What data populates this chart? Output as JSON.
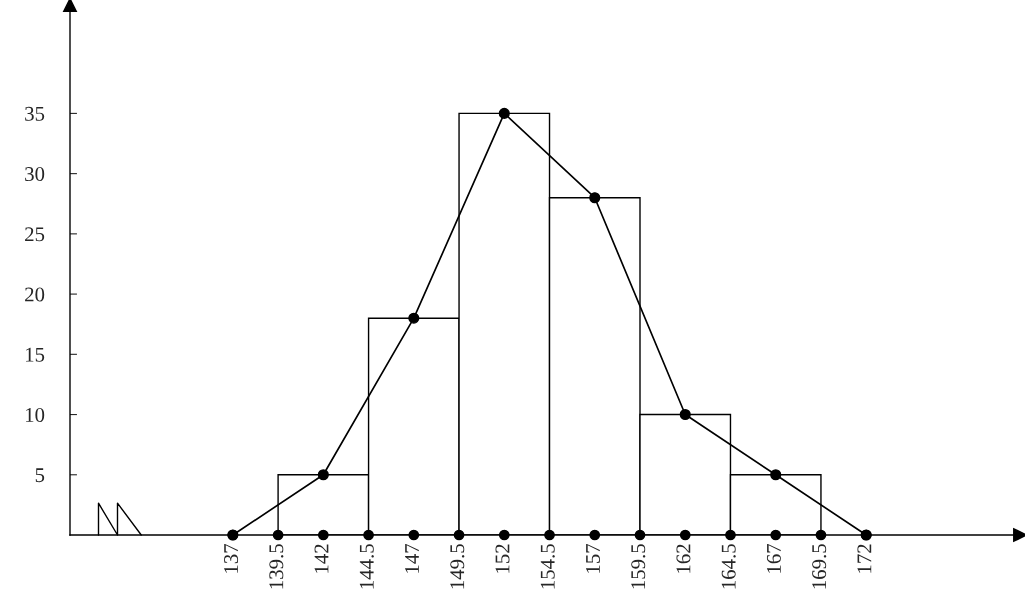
{
  "chart_data": {
    "type": "histogram",
    "bins": [
      139.5,
      144.5,
      149.5,
      154.5,
      159.5,
      164.5,
      169.5
    ],
    "values": [
      5,
      18,
      35,
      28,
      10,
      5
    ],
    "color": "#ffffff",
    "series": [
      {
        "type": "line",
        "color": "#000000",
        "x": [
          137,
          142,
          147,
          152,
          157,
          162,
          167,
          172
        ],
        "values": [
          0,
          5,
          18,
          35,
          28,
          10,
          5,
          0
        ],
        "marker": "circle"
      },
      {
        "type": "scatter",
        "color": "#000000",
        "x": [
          137,
          139.5,
          142,
          144.5,
          147,
          149.5,
          152,
          154.5,
          157,
          159.5,
          162,
          164.5,
          167,
          169.5,
          172
        ],
        "values": [
          0,
          0,
          0,
          0,
          0,
          0,
          0,
          0,
          0,
          0,
          0,
          0,
          0,
          0,
          0
        ],
        "marker": "circle"
      }
    ],
    "xlim": [
      128,
      180.5
    ],
    "ylim": [
      0,
      44
    ],
    "xticks": [
      137,
      139.5,
      142,
      144.5,
      147,
      149.5,
      152,
      154.5,
      157,
      159.5,
      162,
      164.5,
      167,
      169.5,
      172
    ],
    "yticks": [
      5,
      10,
      15,
      20,
      25,
      30,
      35
    ],
    "grid": false,
    "legend": false
  }
}
